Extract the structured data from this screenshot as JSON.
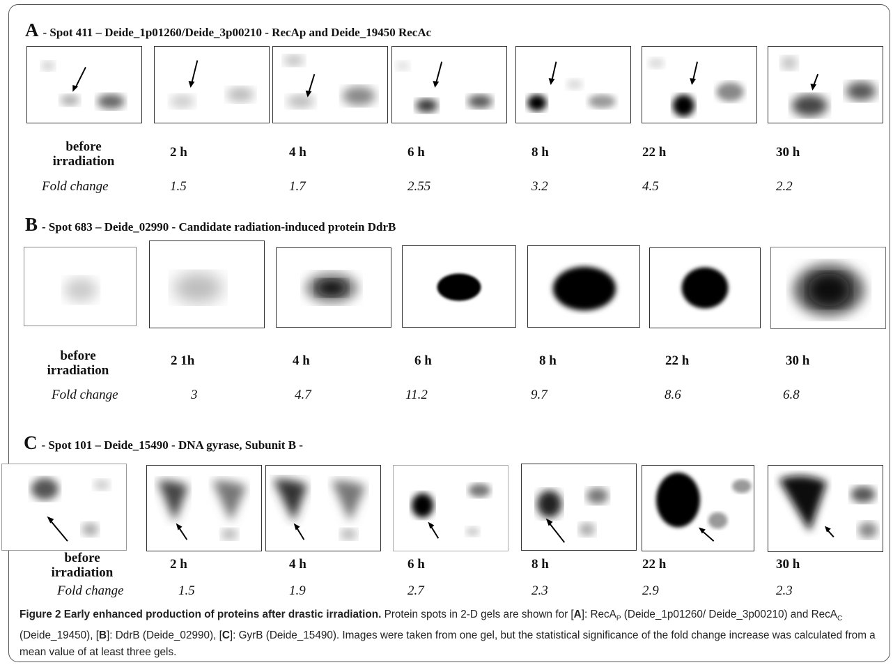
{
  "figure": {
    "panels": [
      {
        "letter": "A",
        "title": "- Spot 411 – Deide_1p01260/Deide_3p00210  -  RecAp and Deide_19450  RecAc",
        "first_label": [
          "before",
          "irradiation"
        ],
        "times": [
          "2 h",
          "4 h",
          "6 h",
          "8 h",
          "22 h",
          "30 h"
        ],
        "fold_label": "Fold change",
        "fold_values": [
          "1.5",
          "1.7",
          "2.55",
          "3.2",
          "4.5",
          "2.2"
        ]
      },
      {
        "letter": "B",
        "title": "- Spot 683 – Deide_02990 - Candidate radiation-induced protein DdrB",
        "first_label": [
          "before",
          "irradiation"
        ],
        "times": [
          "2 1h",
          "4 h",
          "6 h",
          "8 h",
          "22 h",
          "30 h"
        ],
        "fold_label": "Fold change",
        "fold_values": [
          "3",
          "4.7",
          "11.2",
          "9.7",
          "8.6",
          "6.8"
        ]
      },
      {
        "letter": "C",
        "title": "- Spot 101 – Deide_15490  - DNA gyrase, Subunit B -",
        "first_label": [
          "before",
          "irradiation"
        ],
        "times": [
          "2 h",
          "4 h",
          "6 h",
          "8 h",
          "22 h",
          "30 h"
        ],
        "fold_label": "Fold change",
        "fold_values": [
          "1.5",
          "1.9",
          "2.7",
          "2.3",
          "2.9",
          "2.3"
        ]
      }
    ],
    "caption": {
      "bold": "Figure 2 Early enhanced production of proteins after drastic irradiation.",
      "text_1": " Protein spots in 2-D gels are shown for [",
      "a": "A",
      "text_2": "]: RecA",
      "sub_p": "P",
      "text_3": " (Deide_1p01260/ Deide_3p00210) and RecA",
      "sub_c": "C",
      "text_4": " (Deide_19450), [",
      "b": "B",
      "text_5": "]: DdrB (Deide_02990), [",
      "c": "C",
      "text_6": "]: GyrB (Deide_15490). Images were taken from one gel, but the statistical significance of the fold change increase was calculated from a mean value of at least three gels."
    }
  }
}
